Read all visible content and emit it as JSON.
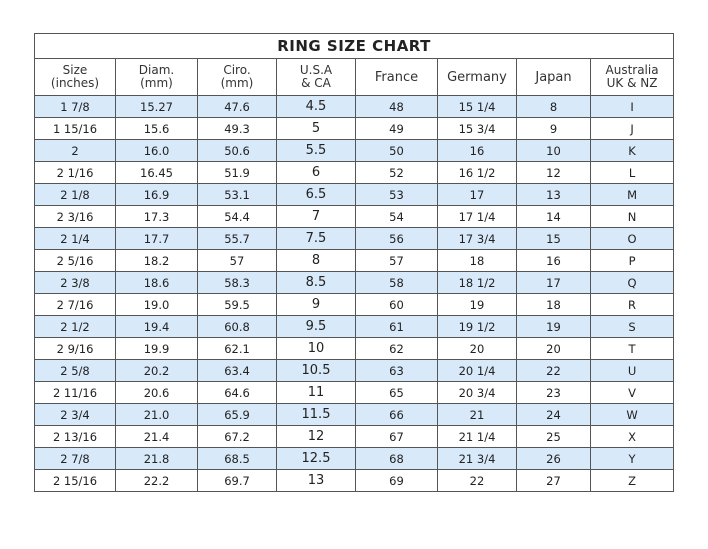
{
  "title": "RING SIZE CHART",
  "headers": [
    [
      "Size",
      "(inches)"
    ],
    [
      "Diam.",
      "(mm)"
    ],
    [
      "Ciro.",
      "(mm)"
    ],
    [
      "U.S.A",
      "& CA"
    ],
    [
      "France",
      ""
    ],
    [
      "Germany",
      ""
    ],
    [
      "Japan",
      ""
    ],
    [
      "Australia",
      "UK & NZ"
    ]
  ],
  "row_fill_color": "#d8e9f9",
  "rows": [
    [
      "1 7/8",
      "15.27",
      "47.6",
      "4.5",
      "48",
      "15 1/4",
      "8",
      "I"
    ],
    [
      "1 15/16",
      "15.6",
      "49.3",
      "5",
      "49",
      "15 3/4",
      "9",
      "J"
    ],
    [
      "2",
      "16.0",
      "50.6",
      "5.5",
      "50",
      "16",
      "10",
      "K"
    ],
    [
      "2 1/16",
      "16.45",
      "51.9",
      "6",
      "52",
      "16 1/2",
      "12",
      "L"
    ],
    [
      "2 1/8",
      "16.9",
      "53.1",
      "6.5",
      "53",
      "17",
      "13",
      "M"
    ],
    [
      "2 3/16",
      "17.3",
      "54.4",
      "7",
      "54",
      "17 1/4",
      "14",
      "N"
    ],
    [
      "2 1/4",
      "17.7",
      "55.7",
      "7.5",
      "56",
      "17 3/4",
      "15",
      "O"
    ],
    [
      "2 5/16",
      "18.2",
      "57",
      "8",
      "57",
      "18",
      "16",
      "P"
    ],
    [
      "2 3/8",
      "18.6",
      "58.3",
      "8.5",
      "58",
      "18 1/2",
      "17",
      "Q"
    ],
    [
      "2 7/16",
      "19.0",
      "59.5",
      "9",
      "60",
      "19",
      "18",
      "R"
    ],
    [
      "2 1/2",
      "19.4",
      "60.8",
      "9.5",
      "61",
      "19 1/2",
      "19",
      "S"
    ],
    [
      "2 9/16",
      "19.9",
      "62.1",
      "10",
      "62",
      "20",
      "20",
      "T"
    ],
    [
      "2 5/8",
      "20.2",
      "63.4",
      "10.5",
      "63",
      "20 1/4",
      "22",
      "U"
    ],
    [
      "2 11/16",
      "20.6",
      "64.6",
      "11",
      "65",
      "20 3/4",
      "23",
      "V"
    ],
    [
      "2 3/4",
      "21.0",
      "65.9",
      "11.5",
      "66",
      "21",
      "24",
      "W"
    ],
    [
      "2 13/16",
      "21.4",
      "67.2",
      "12",
      "67",
      "21 1/4",
      "25",
      "X"
    ],
    [
      "2 7/8",
      "21.8",
      "68.5",
      "12.5",
      "68",
      "21 3/4",
      "26",
      "Y"
    ],
    [
      "2 15/16",
      "22.2",
      "69.7",
      "13",
      "69",
      "22",
      "27",
      "Z"
    ]
  ]
}
